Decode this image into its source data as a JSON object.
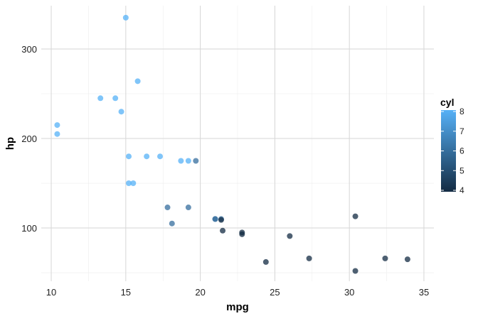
{
  "chart_data": {
    "type": "scatter",
    "title": "",
    "xlabel": "mpg",
    "ylabel": "hp",
    "xlim": [
      9.33,
      35.67
    ],
    "ylim": [
      40.5,
      348.4
    ],
    "x_ticks": [
      10,
      15,
      20,
      25,
      30,
      35
    ],
    "y_ticks": [
      100,
      200,
      300
    ],
    "grid": true,
    "legend": {
      "title": "cyl",
      "placement": "right",
      "type": "colorbar",
      "range": [
        4,
        8
      ],
      "ticks": [
        4,
        5,
        6,
        7,
        8
      ],
      "low_color": "#132B43",
      "high_color": "#56B1F7"
    },
    "points": [
      {
        "mpg": 21.0,
        "hp": 110,
        "cyl": 6
      },
      {
        "mpg": 21.0,
        "hp": 110,
        "cyl": 6
      },
      {
        "mpg": 22.8,
        "hp": 93,
        "cyl": 4
      },
      {
        "mpg": 21.4,
        "hp": 110,
        "cyl": 6
      },
      {
        "mpg": 18.7,
        "hp": 175,
        "cyl": 8
      },
      {
        "mpg": 18.1,
        "hp": 105,
        "cyl": 6
      },
      {
        "mpg": 14.3,
        "hp": 245,
        "cyl": 8
      },
      {
        "mpg": 24.4,
        "hp": 62,
        "cyl": 4
      },
      {
        "mpg": 22.8,
        "hp": 95,
        "cyl": 4
      },
      {
        "mpg": 19.2,
        "hp": 123,
        "cyl": 6
      },
      {
        "mpg": 17.8,
        "hp": 123,
        "cyl": 6
      },
      {
        "mpg": 16.4,
        "hp": 180,
        "cyl": 8
      },
      {
        "mpg": 17.3,
        "hp": 180,
        "cyl": 8
      },
      {
        "mpg": 15.2,
        "hp": 180,
        "cyl": 8
      },
      {
        "mpg": 10.4,
        "hp": 205,
        "cyl": 8
      },
      {
        "mpg": 10.4,
        "hp": 215,
        "cyl": 8
      },
      {
        "mpg": 14.7,
        "hp": 230,
        "cyl": 8
      },
      {
        "mpg": 32.4,
        "hp": 66,
        "cyl": 4
      },
      {
        "mpg": 30.4,
        "hp": 52,
        "cyl": 4
      },
      {
        "mpg": 33.9,
        "hp": 65,
        "cyl": 4
      },
      {
        "mpg": 21.5,
        "hp": 97,
        "cyl": 4
      },
      {
        "mpg": 15.5,
        "hp": 150,
        "cyl": 8
      },
      {
        "mpg": 15.2,
        "hp": 150,
        "cyl": 8
      },
      {
        "mpg": 13.3,
        "hp": 245,
        "cyl": 8
      },
      {
        "mpg": 19.2,
        "hp": 175,
        "cyl": 8
      },
      {
        "mpg": 27.3,
        "hp": 66,
        "cyl": 4
      },
      {
        "mpg": 26.0,
        "hp": 91,
        "cyl": 4
      },
      {
        "mpg": 30.4,
        "hp": 113,
        "cyl": 4
      },
      {
        "mpg": 15.8,
        "hp": 264,
        "cyl": 8
      },
      {
        "mpg": 19.7,
        "hp": 175,
        "cyl": 6
      },
      {
        "mpg": 15.0,
        "hp": 335,
        "cyl": 8
      },
      {
        "mpg": 21.4,
        "hp": 109,
        "cyl": 4
      }
    ]
  }
}
